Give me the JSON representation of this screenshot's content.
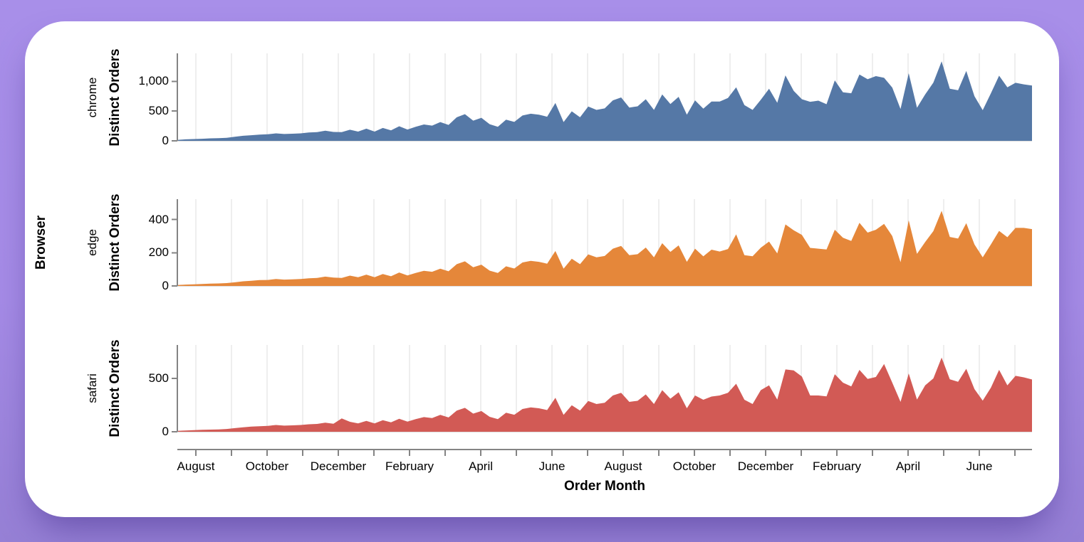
{
  "page": {
    "background_top": "#a88fe9",
    "background_bottom": "#9680d5",
    "card_color": "#ffffff"
  },
  "chart_data": {
    "type": "area",
    "facet_title": "Browser",
    "x_title": "Order Month",
    "y_title": "Distinct Orders",
    "x_unit": "week",
    "x_span_months": 24,
    "x_tick_labels": [
      "August",
      "October",
      "December",
      "February",
      "April",
      "June",
      "August",
      "October",
      "December",
      "February",
      "April",
      "June"
    ],
    "grid": true,
    "legend": "none",
    "axis_color": "#848484",
    "grid_color": "#dddddd",
    "text_color": "#000000",
    "series": [
      {
        "name": "chrome",
        "color": "#5578a6",
        "y_domain": [
          0,
          1471
        ],
        "y_axis_ticks": [
          {
            "v": 0,
            "label": "0"
          },
          {
            "v": 500,
            "label": "500"
          },
          {
            "v": 1000,
            "label": "1,000"
          }
        ],
        "values": [
          15,
          25,
          30,
          35,
          42,
          45,
          52,
          68,
          85,
          95,
          105,
          110,
          126,
          115,
          120,
          126,
          140,
          146,
          170,
          150,
          146,
          186,
          156,
          205,
          156,
          216,
          176,
          245,
          190,
          236,
          275,
          256,
          316,
          268,
          396,
          448,
          340,
          388,
          280,
          236,
          356,
          318,
          426,
          456,
          440,
          406,
          636,
          316,
          496,
          396,
          576,
          520,
          545,
          680,
          730,
          560,
          580,
          700,
          520,
          780,
          620,
          740,
          440,
          680,
          540,
          660,
          660,
          720,
          900,
          600,
          520,
          690,
          876,
          640,
          1100,
          840,
          700,
          656,
          676,
          616,
          1016,
          816,
          800,
          1116,
          1036,
          1088,
          1060,
          896,
          536,
          1136,
          556,
          780,
          980,
          1336,
          876,
          850,
          1176,
          750,
          516,
          800,
          1096,
          900,
          976,
          950,
          930
        ]
      },
      {
        "name": "edge",
        "color": "#e5873a",
        "y_domain": [
          0,
          522
        ],
        "y_axis_ticks": [
          {
            "v": 0,
            "label": "0"
          },
          {
            "v": 200,
            "label": "200"
          },
          {
            "v": 400,
            "label": "400"
          }
        ],
        "values": [
          5,
          8,
          10,
          12,
          14,
          15,
          17,
          22,
          28,
          31,
          35,
          36,
          42,
          38,
          40,
          42,
          46,
          48,
          56,
          50,
          48,
          62,
          52,
          68,
          52,
          72,
          58,
          81,
          63,
          78,
          91,
          85,
          104,
          88,
          131,
          148,
          112,
          128,
          92,
          78,
          118,
          105,
          141,
          151,
          145,
          134,
          210,
          104,
          164,
          131,
          190,
          172,
          180,
          224,
          241,
          185,
          191,
          231,
          172,
          257,
          205,
          244,
          145,
          224,
          178,
          218,
          207,
          222,
          310,
          185,
          179,
          230,
          267,
          196,
          370,
          335,
          307,
          229,
          224,
          219,
          338,
          290,
          271,
          380,
          321,
          338,
          373,
          300,
          143,
          395,
          193,
          264,
          330,
          452,
          295,
          285,
          378,
          250,
          172,
          250,
          331,
          293,
          349,
          349,
          342
        ]
      },
      {
        "name": "safari",
        "color": "#d25a55",
        "y_domain": [
          0,
          813
        ],
        "y_axis_ticks": [
          {
            "v": 0,
            "label": "0"
          },
          {
            "v": 500,
            "label": "500"
          }
        ],
        "values": [
          8,
          12,
          15,
          18,
          20,
          22,
          26,
          34,
          42,
          48,
          52,
          55,
          63,
          57,
          60,
          63,
          70,
          73,
          85,
          75,
          125,
          93,
          78,
          102,
          78,
          108,
          88,
          122,
          95,
          118,
          137,
          128,
          158,
          134,
          198,
          224,
          170,
          194,
          140,
          118,
          178,
          159,
          213,
          228,
          220,
          203,
          318,
          158,
          248,
          198,
          288,
          260,
          272,
          340,
          365,
          280,
          290,
          350,
          260,
          390,
          310,
          370,
          220,
          340,
          300,
          330,
          340,
          365,
          450,
          300,
          260,
          390,
          435,
          302,
          584,
          575,
          517,
          340,
          340,
          331,
          539,
          460,
          425,
          580,
          495,
          513,
          635,
          460,
          280,
          546,
          302,
          435,
          500,
          695,
          491,
          468,
          590,
          400,
          291,
          413,
          580,
          435,
          524,
          510,
          490
        ]
      }
    ]
  }
}
